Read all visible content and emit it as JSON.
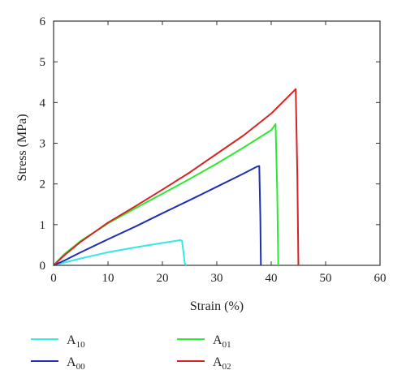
{
  "chart_data": {
    "type": "line",
    "title": "",
    "xlabel": "Strain (%)",
    "ylabel": "Stress (MPa)",
    "xlim": [
      0,
      60
    ],
    "ylim": [
      0,
      6
    ],
    "xticks": [
      0,
      10,
      20,
      30,
      40,
      50,
      60
    ],
    "yticks": [
      0,
      1,
      2,
      3,
      4,
      5,
      6
    ],
    "grid": false,
    "legend_position": "bottom",
    "series": [
      {
        "name": "A10",
        "name_main": "A",
        "name_sub": "10",
        "color": "#33e8e8",
        "x": [
          0,
          2,
          5,
          10,
          15,
          20,
          22,
          23.3,
          23.6,
          23.9,
          24.1,
          24.4
        ],
        "y": [
          0,
          0.07,
          0.17,
          0.32,
          0.44,
          0.55,
          0.59,
          0.62,
          0.6,
          0.3,
          0.05,
          0
        ]
      },
      {
        "name": "A00",
        "name_main": "A",
        "name_sub": "00",
        "color": "#1e2fb0",
        "x": [
          0,
          2,
          5,
          10,
          15,
          20,
          25,
          30,
          35,
          37.3,
          37.8,
          38.0,
          38.1
        ],
        "y": [
          0,
          0.12,
          0.32,
          0.64,
          0.95,
          1.28,
          1.6,
          1.93,
          2.26,
          2.42,
          2.44,
          1.2,
          0
        ]
      },
      {
        "name": "A01",
        "name_main": "A",
        "name_sub": "01",
        "color": "#2ee82e",
        "x": [
          0,
          2,
          5,
          10,
          15,
          20,
          25,
          30,
          35,
          40,
          40.8,
          41.1,
          41.3
        ],
        "y": [
          0,
          0.28,
          0.6,
          1.03,
          1.4,
          1.76,
          2.12,
          2.5,
          2.9,
          3.32,
          3.47,
          1.8,
          0
        ]
      },
      {
        "name": "A02",
        "name_main": "A",
        "name_sub": "02",
        "color": "#d42424",
        "x": [
          0,
          2,
          5,
          10,
          15,
          20,
          25,
          30,
          35,
          40,
          44.5,
          44.8,
          45.0
        ],
        "y": [
          0,
          0.25,
          0.58,
          1.05,
          1.45,
          1.86,
          2.28,
          2.74,
          3.2,
          3.73,
          4.33,
          2.2,
          0
        ]
      }
    ]
  }
}
